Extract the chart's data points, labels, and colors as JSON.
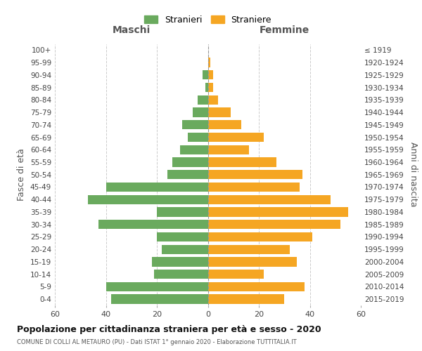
{
  "age_groups": [
    "0-4",
    "5-9",
    "10-14",
    "15-19",
    "20-24",
    "25-29",
    "30-34",
    "35-39",
    "40-44",
    "45-49",
    "50-54",
    "55-59",
    "60-64",
    "65-69",
    "70-74",
    "75-79",
    "80-84",
    "85-89",
    "90-94",
    "95-99",
    "100+"
  ],
  "birth_years": [
    "2015-2019",
    "2010-2014",
    "2005-2009",
    "2000-2004",
    "1995-1999",
    "1990-1994",
    "1985-1989",
    "1980-1984",
    "1975-1979",
    "1970-1974",
    "1965-1969",
    "1960-1964",
    "1955-1959",
    "1950-1954",
    "1945-1949",
    "1940-1944",
    "1935-1939",
    "1930-1934",
    "1925-1929",
    "1920-1924",
    "≤ 1919"
  ],
  "males": [
    38,
    40,
    21,
    22,
    18,
    20,
    43,
    20,
    47,
    40,
    16,
    14,
    11,
    8,
    10,
    6,
    4,
    1,
    2,
    0,
    0
  ],
  "females": [
    30,
    38,
    22,
    35,
    32,
    41,
    52,
    55,
    48,
    36,
    37,
    27,
    16,
    22,
    13,
    9,
    4,
    2,
    2,
    1,
    0
  ],
  "male_color": "#6aaa5e",
  "female_color": "#f5a623",
  "background_color": "#ffffff",
  "grid_color": "#cccccc",
  "title": "Popolazione per cittadinanza straniera per età e sesso - 2020",
  "subtitle": "COMUNE DI COLLI AL METAURO (PU) - Dati ISTAT 1° gennaio 2020 - Elaborazione TUTTITALIA.IT",
  "xlabel_left": "Maschi",
  "xlabel_right": "Femmine",
  "ylabel_left": "Fasce di età",
  "ylabel_right": "Anni di nascita",
  "legend_stranieri": "Stranieri",
  "legend_straniere": "Straniere",
  "xlim": 60
}
